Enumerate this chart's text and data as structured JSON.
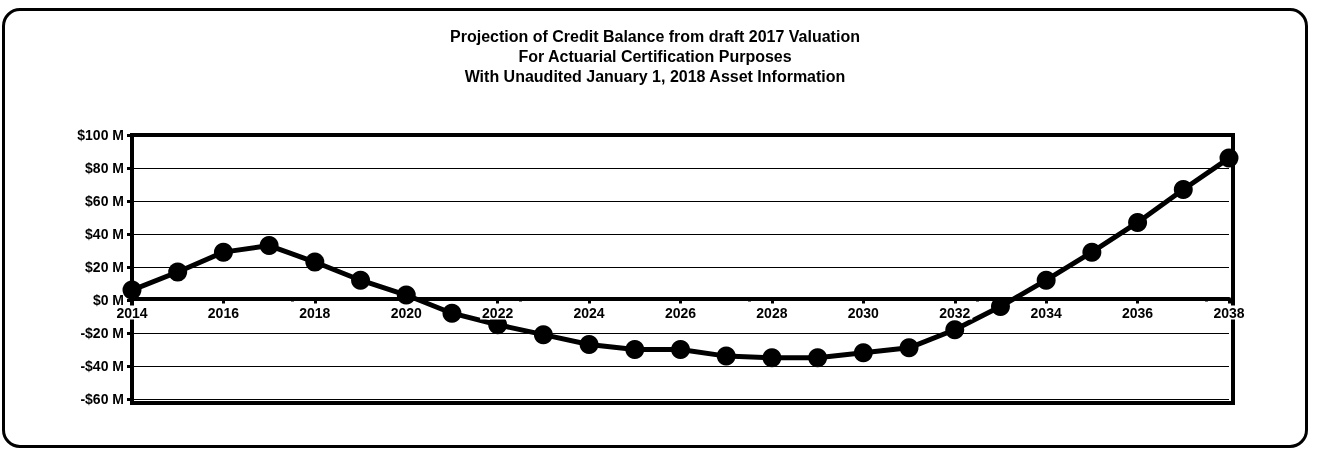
{
  "chart_data": {
    "type": "line",
    "title": "Projection of Credit Balance from draft 2017 Valuation\nFor Actuarial Certification Purposes\nWith Unaudited January 1, 2018 Asset Information",
    "x": [
      2014,
      2015,
      2016,
      2017,
      2018,
      2019,
      2020,
      2021,
      2022,
      2023,
      2024,
      2025,
      2026,
      2027,
      2028,
      2029,
      2030,
      2031,
      2032,
      2033,
      2034,
      2035,
      2036,
      2037,
      2038
    ],
    "series": [
      {
        "color": "#000000",
        "values": [
          6,
          17,
          29,
          33,
          23,
          12,
          3,
          -8,
          -15,
          -21,
          -27,
          -30,
          -30,
          -34,
          -35,
          -35,
          -32,
          -29,
          -18,
          -4,
          12,
          29,
          47,
          67,
          86
        ]
      }
    ],
    "xlim": [
      2014,
      2038
    ],
    "xticks": [
      2014,
      2016,
      2018,
      2020,
      2022,
      2024,
      2026,
      2028,
      2030,
      2032,
      2034,
      2036,
      2038
    ],
    "ylim": [
      -60,
      100
    ],
    "yticks": [
      {
        "value": -60,
        "label": "-$60 M"
      },
      {
        "value": -40,
        "label": "-$40 M"
      },
      {
        "value": -20,
        "label": "-$20 M"
      },
      {
        "value": 0,
        "label": "$0 M"
      },
      {
        "value": 20,
        "label": "$20 M"
      },
      {
        "value": 40,
        "label": "$40 M"
      },
      {
        "value": 60,
        "label": "$60 M"
      },
      {
        "value": 80,
        "label": "$80 M"
      },
      {
        "value": 100,
        "label": "$100 M"
      }
    ],
    "grid": "y",
    "marker": "circle",
    "line_style": "solid"
  }
}
